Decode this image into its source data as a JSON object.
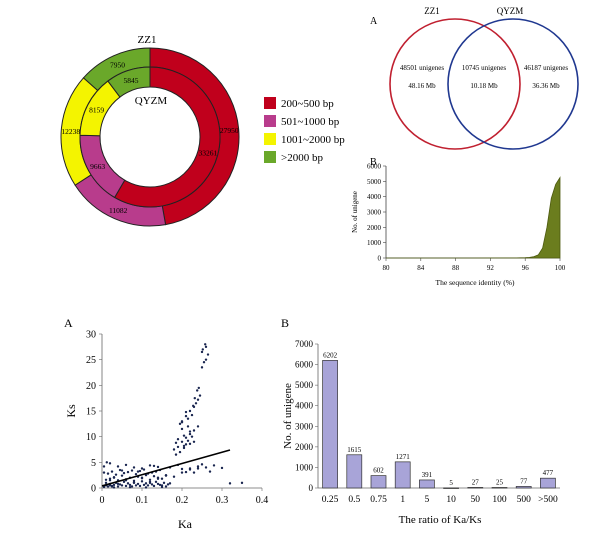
{
  "chart_data": [
    {
      "type": "pie",
      "subtype": "double-donut",
      "outer_label": "ZZ1",
      "inner_label": "QYZM",
      "legend": {
        "placement": "right",
        "entries": [
          "200~500 bp",
          "501~1000 bp",
          "1001~2000 bp",
          ">2000 bp"
        ]
      },
      "colors": [
        "#c0001c",
        "#b83c8c",
        "#f4f400",
        "#6aa82a"
      ],
      "outer_ring": [
        {
          "category": "200~500 bp",
          "value": 27950,
          "label": "27950"
        },
        {
          "category": "501~1000 bp",
          "value": 11082,
          "label": "11082"
        },
        {
          "category": "1001~2000 bp",
          "value": 12238,
          "label": "12238"
        },
        {
          "category": ">2000 bp",
          "value": 7950,
          "label": "7950"
        }
      ],
      "inner_ring": [
        {
          "category": "200~500 bp",
          "value": 33261,
          "label": "33261"
        },
        {
          "category": "501~1000 bp",
          "value": 9663,
          "label": "9663"
        },
        {
          "category": "1001~2000 bp",
          "value": 8159,
          "label": "8159"
        },
        {
          "category": ">2000 bp",
          "value": 5845,
          "label": "5845"
        }
      ]
    },
    {
      "type": "venn",
      "panel": "A",
      "sets": [
        {
          "name": "ZZ1",
          "color": "#c02030",
          "count_label": "48501 unigenes",
          "size_label": "48.16 Mb"
        },
        {
          "name": "QYZM",
          "color": "#203890",
          "count_label": "46187 unigenes",
          "size_label": "36.36 Mb"
        }
      ],
      "overlap": {
        "count_label": "10745 unigenes",
        "size_label": "10.18 Mb"
      }
    },
    {
      "type": "area",
      "panel": "B",
      "xlabel": "The  sequence identity (%)",
      "ylabel": "No. of unigene",
      "xlim": [
        80,
        100
      ],
      "ylim": [
        0,
        6000
      ],
      "xticks": [
        80,
        84,
        88,
        92,
        96,
        100
      ],
      "yticks": [
        0,
        1000,
        2000,
        3000,
        4000,
        5000,
        6000
      ],
      "color": "#6b7d1e",
      "x": [
        80,
        90,
        95,
        96,
        96.5,
        97,
        97.5,
        98,
        98.5,
        99,
        99.5,
        100
      ],
      "y": [
        0,
        0,
        10,
        20,
        40,
        90,
        200,
        650,
        2000,
        3900,
        4800,
        5250
      ]
    },
    {
      "type": "scatter",
      "panel": "A",
      "xlabel": "Ka",
      "ylabel": "Ks",
      "xlim": [
        0,
        0.4
      ],
      "ylim": [
        0,
        30
      ],
      "xticks": [
        0,
        0.1,
        0.2,
        0.3,
        0.4
      ],
      "yticks": [
        0,
        5,
        10,
        15,
        20,
        25,
        30
      ],
      "color": "#1a2650",
      "trendline": {
        "x": [
          0,
          0.32
        ],
        "y": [
          0.4,
          7.4
        ]
      },
      "x": [
        0.005,
        0.01,
        0.015,
        0.02,
        0.025,
        0.03,
        0.035,
        0.04,
        0.045,
        0.05,
        0.055,
        0.06,
        0.065,
        0.07,
        0.075,
        0.08,
        0.085,
        0.09,
        0.095,
        0.1,
        0.105,
        0.11,
        0.115,
        0.12,
        0.125,
        0.13,
        0.135,
        0.14,
        0.145,
        0.15,
        0.155,
        0.16,
        0.165,
        0.17,
        0.01,
        0.02,
        0.03,
        0.04,
        0.05,
        0.06,
        0.07,
        0.08,
        0.09,
        0.1,
        0.11,
        0.12,
        0.13,
        0.14,
        0.15,
        0.16,
        0.005,
        0.015,
        0.025,
        0.035,
        0.045,
        0.055,
        0.065,
        0.075,
        0.085,
        0.095,
        0.105,
        0.115,
        0.125,
        0.135,
        0.145,
        0.02,
        0.04,
        0.06,
        0.08,
        0.1,
        0.12,
        0.14,
        0.03,
        0.07,
        0.11,
        0.15,
        0.005,
        0.012,
        0.05,
        0.09,
        0.13,
        0.17,
        0.19,
        0.2,
        0.21,
        0.22,
        0.23,
        0.24,
        0.25,
        0.26,
        0.27,
        0.28,
        0.3,
        0.18,
        0.19,
        0.2,
        0.21,
        0.22,
        0.23,
        0.24,
        0.185,
        0.195,
        0.205,
        0.21,
        0.2,
        0.215,
        0.225,
        0.22,
        0.23,
        0.235,
        0.24,
        0.245,
        0.25,
        0.255,
        0.26,
        0.265,
        0.21,
        0.215,
        0.22,
        0.225,
        0.23,
        0.205,
        0.19,
        0.185,
        0.2,
        0.195,
        0.2,
        0.21,
        0.205,
        0.215,
        0.22,
        0.228,
        0.232,
        0.238,
        0.242,
        0.25,
        0.26,
        0.252,
        0.258,
        0.01,
        0.02,
        0.02,
        0.03,
        0.025,
        0.04,
        0.06,
        0.08,
        0.1,
        0.12,
        0.14,
        0.16,
        0.18,
        0.2,
        0.22,
        0.24,
        0.35,
        0.32
      ],
      "y": [
        0.2,
        0.5,
        0.3,
        0.8,
        0.4,
        0.6,
        1.0,
        0.3,
        0.7,
        0.5,
        1.2,
        0.4,
        0.9,
        0.6,
        0.3,
        1.1,
        0.5,
        0.8,
        0.4,
        1.3,
        0.6,
        0.9,
        0.5,
        1.0,
        0.7,
        0.4,
        1.2,
        0.8,
        0.6,
        0.5,
        1.0,
        0.3,
        0.7,
        0.9,
        1.6,
        1.8,
        2.1,
        1.5,
        2.4,
        1.7,
        2.0,
        1.4,
        2.2,
        1.9,
        2.5,
        1.6,
        2.3,
        2.0,
        1.8,
        2.4,
        3.0,
        2.8,
        3.2,
        2.6,
        3.5,
        2.9,
        3.1,
        3.4,
        2.7,
        3.3,
        3.6,
        2.8,
        3.0,
        3.2,
        3.5,
        4.8,
        4.2,
        4.5,
        4.0,
        3.8,
        4.4,
        4.1,
        0.1,
        0.15,
        0.1,
        0.2,
        4.2,
        5.0,
        3.4,
        3.2,
        4.3,
        4.0,
        4.5,
        3.7,
        3.1,
        3.6,
        3.0,
        3.8,
        4.6,
        4.0,
        3.2,
        4.4,
        3.9,
        7.5,
        8.0,
        9.0,
        9.8,
        10.5,
        11.2,
        12.0,
        6.5,
        7.0,
        7.8,
        8.5,
        12.8,
        13.5,
        14.2,
        15.0,
        15.8,
        16.5,
        17.2,
        18.0,
        23.5,
        24.5,
        25.0,
        26.0,
        14.0,
        12.0,
        11.0,
        10.0,
        9.0,
        10.2,
        9.5,
        8.8,
        11.5,
        12.5,
        13.0,
        14.8,
        8.2,
        9.2,
        8.6,
        16.0,
        17.5,
        19.0,
        19.5,
        26.5,
        27.5,
        27.0,
        28.0,
        1.0,
        1.5,
        0.5,
        2.0,
        0.3,
        0.8,
        1.5,
        1.0,
        2.0,
        1.2,
        1.8,
        2.5,
        2.2,
        3.0,
        3.8,
        4.2,
        1.0,
        0.9
      ]
    },
    {
      "type": "bar",
      "panel": "B",
      "xlabel": "The ratio of Ka/Ks",
      "ylabel": "No. of unigene",
      "ylim": [
        0,
        7000
      ],
      "yticks": [
        0,
        1000,
        2000,
        3000,
        4000,
        5000,
        6000,
        7000
      ],
      "color": "#a8a4d8",
      "categories": [
        "0.25",
        "0.5",
        "0.75",
        "1",
        "5",
        "10",
        "50",
        "100",
        "500",
        ">500"
      ],
      "values": [
        6202,
        1615,
        602,
        1271,
        391,
        5,
        27,
        25,
        77,
        477
      ],
      "data_labels": [
        "6202",
        "1615",
        "602",
        "1271",
        "391",
        "5",
        "27",
        "25",
        "77",
        "477"
      ]
    }
  ]
}
